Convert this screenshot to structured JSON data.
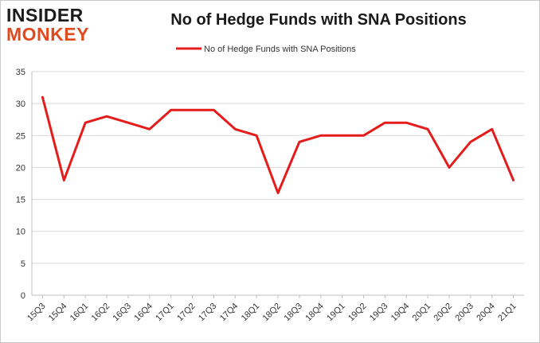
{
  "logo": {
    "line1": "INSIDER",
    "line2": "MONKEY"
  },
  "colors": {
    "series": "#e41c1c",
    "grid": "#d9d9d9",
    "axis": "#bfbfbf",
    "logo_accent": "#e04a1f"
  },
  "chart_data": {
    "type": "line",
    "title": "No of Hedge Funds with SNA Positions",
    "xlabel": "",
    "ylabel": "",
    "ylim": [
      0,
      35
    ],
    "yticks": [
      0,
      5,
      10,
      15,
      20,
      25,
      30,
      35
    ],
    "grid": true,
    "legend_position": "top-center",
    "categories": [
      "15Q3",
      "15Q4",
      "16Q1",
      "16Q2",
      "16Q3",
      "16Q4",
      "17Q1",
      "17Q2",
      "17Q3",
      "17Q4",
      "18Q1",
      "18Q2",
      "18Q3",
      "18Q4",
      "19Q1",
      "19Q2",
      "19Q3",
      "19Q4",
      "20Q1",
      "20Q2",
      "20Q3",
      "20Q4",
      "21Q1"
    ],
    "series": [
      {
        "name": "No of Hedge Funds with SNA Positions",
        "values": [
          31,
          18,
          27,
          28,
          27,
          26,
          29,
          29,
          29,
          26,
          25,
          16,
          24,
          25,
          25,
          25,
          27,
          27,
          26,
          20,
          24,
          26,
          18
        ]
      }
    ]
  }
}
